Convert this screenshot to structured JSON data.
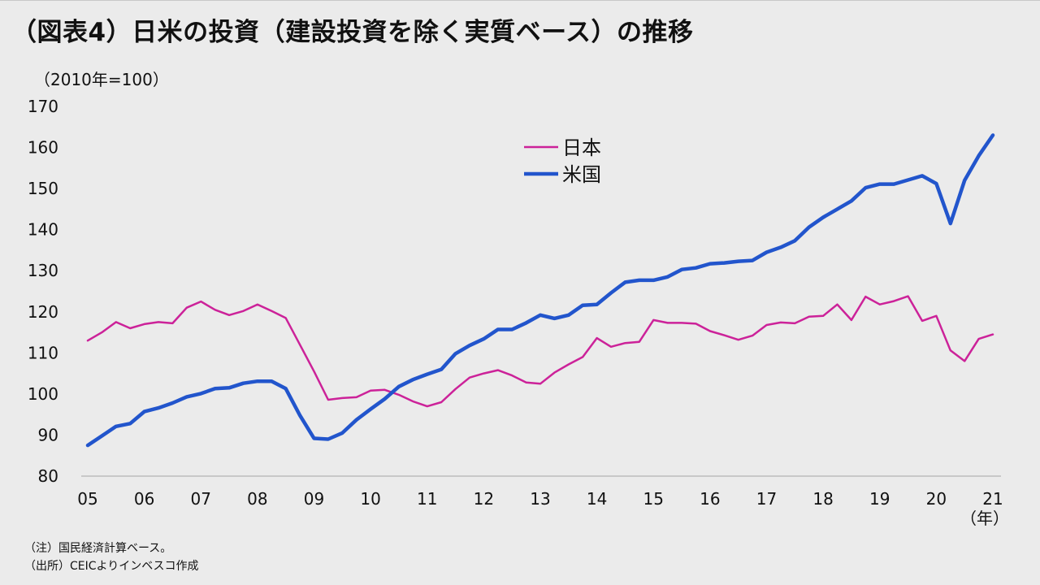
{
  "title": "（図表4）日米の投資（建設投資を除く実質ベース）の推移",
  "notes": {
    "note1": "（注）国民経済計算ベース。",
    "note2": "（出所）CEICよりインベスコ作成"
  },
  "chart_data": {
    "type": "line",
    "title": "（図表4）日米の投資（建設投資を除く実質ベース）の推移",
    "ylabel": "（2010年=100）",
    "xlabel": "（年）",
    "ylim": [
      80,
      170
    ],
    "yticks": [
      80,
      90,
      100,
      110,
      120,
      130,
      140,
      150,
      160,
      170
    ],
    "xlim": [
      2005,
      2021.3
    ],
    "xticks": [
      {
        "label": "05",
        "x": 2005
      },
      {
        "label": "06",
        "x": 2006
      },
      {
        "label": "07",
        "x": 2007
      },
      {
        "label": "08",
        "x": 2008
      },
      {
        "label": "09",
        "x": 2009
      },
      {
        "label": "10",
        "x": 2010
      },
      {
        "label": "11",
        "x": 2011
      },
      {
        "label": "12",
        "x": 2012
      },
      {
        "label": "13",
        "x": 2013
      },
      {
        "label": "14",
        "x": 2014
      },
      {
        "label": "15",
        "x": 2015
      },
      {
        "label": "16",
        "x": 2016
      },
      {
        "label": "17",
        "x": 2017
      },
      {
        "label": "18",
        "x": 2018
      },
      {
        "label": "19",
        "x": 2019
      },
      {
        "label": "20",
        "x": 2020
      },
      {
        "label": "21",
        "x": 2021
      }
    ],
    "x_start": 2005,
    "x_step": 0.25,
    "grid": false,
    "legend_position": "top-center",
    "series": [
      {
        "name": "日本",
        "color": "#cc2299",
        "values": [
          113,
          115,
          117.5,
          116,
          117,
          117.5,
          117.2,
          121,
          122.5,
          120.5,
          119.2,
          120.2,
          121.8,
          120.2,
          118.5,
          112,
          105.5,
          98.6,
          99,
          99.2,
          100.8,
          101,
          99.8,
          98.2,
          97,
          98,
          101.2,
          104,
          105,
          105.8,
          104.5,
          102.8,
          102.5,
          105.2,
          107.2,
          109,
          113.6,
          111.5,
          112.4,
          112.7,
          118,
          117.3,
          117.3,
          117.1,
          115.3,
          114.3,
          113.2,
          114.2,
          116.8,
          117.4,
          117.2,
          118.8,
          119,
          121.8,
          118,
          123.7,
          121.8,
          122.6,
          123.8,
          117.8,
          119,
          110.6,
          108,
          113.4,
          114.5
        ]
      },
      {
        "name": "米国",
        "color": "#2255cc",
        "values": [
          87.5,
          89.8,
          92.1,
          92.8,
          95.7,
          96.6,
          97.8,
          99.3,
          100.1,
          101.3,
          101.5,
          102.6,
          103.1,
          103.1,
          101.3,
          94.8,
          89.2,
          89,
          90.5,
          93.7,
          96.3,
          98.8,
          101.8,
          103.5,
          104.8,
          106,
          109.8,
          111.8,
          113.4,
          115.7,
          115.7,
          117.3,
          119.2,
          118.4,
          119.2,
          121.6,
          121.8,
          124.6,
          127.2,
          127.7,
          127.7,
          128.5,
          130.3,
          130.7,
          131.7,
          131.9,
          132.3,
          132.5,
          134.5,
          135.7,
          137.3,
          140.6,
          143,
          145,
          147,
          150.2,
          151.1,
          151.1,
          152.1,
          153.1,
          151.2,
          141.5,
          152,
          158,
          163
        ]
      }
    ]
  }
}
